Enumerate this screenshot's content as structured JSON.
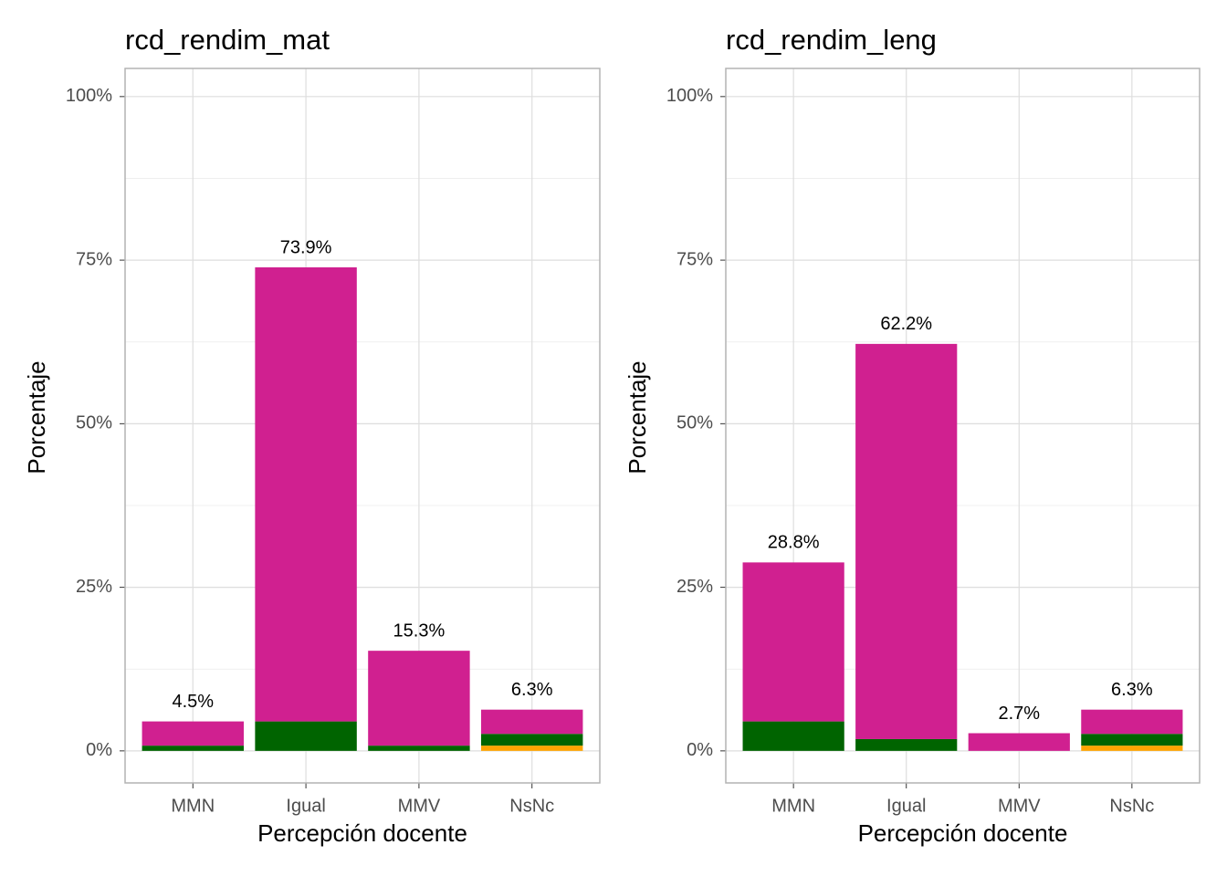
{
  "chart_data": [
    {
      "type": "stacked_bar",
      "title": "rcd_rendim_mat",
      "xlabel": "Percepción docente",
      "ylabel": "Porcentaje",
      "categories": [
        "MMN",
        "Igual",
        "MMV",
        "NsNc"
      ],
      "series": [
        {
          "color": "#ffa500",
          "values": [
            0,
            0,
            0,
            0.8
          ]
        },
        {
          "color": "#006400",
          "values": [
            0.8,
            4.5,
            0.8,
            1.8
          ]
        },
        {
          "color": "#d02090",
          "values": [
            3.7,
            69.4,
            14.5,
            3.7
          ]
        }
      ],
      "totals": [
        4.5,
        73.9,
        15.3,
        6.3
      ],
      "total_labels": [
        "4.5%",
        "73.9%",
        "15.3%",
        "6.3%"
      ],
      "ylim": [
        -4.9,
        104.3
      ],
      "yticks": [
        {
          "value": 0,
          "label": "0%"
        },
        {
          "value": 25,
          "label": "25%"
        },
        {
          "value": 50,
          "label": "50%"
        },
        {
          "value": 75,
          "label": "75%"
        },
        {
          "value": 100,
          "label": "100%"
        }
      ],
      "grid": true
    },
    {
      "type": "stacked_bar",
      "title": "rcd_rendim_leng",
      "xlabel": "Percepción docente",
      "ylabel": "Porcentaje",
      "categories": [
        "MMN",
        "Igual",
        "MMV",
        "NsNc"
      ],
      "series": [
        {
          "color": "#ffa500",
          "values": [
            0,
            0,
            0,
            0.8
          ]
        },
        {
          "color": "#006400",
          "values": [
            4.5,
            1.8,
            0,
            1.8
          ]
        },
        {
          "color": "#d02090",
          "values": [
            24.3,
            60.4,
            2.7,
            3.7
          ]
        }
      ],
      "totals": [
        28.8,
        62.2,
        2.7,
        6.3
      ],
      "total_labels": [
        "28.8%",
        "62.2%",
        "2.7%",
        "6.3%"
      ],
      "ylim": [
        -4.9,
        104.3
      ],
      "yticks": [
        {
          "value": 0,
          "label": "0%"
        },
        {
          "value": 25,
          "label": "25%"
        },
        {
          "value": 50,
          "label": "50%"
        },
        {
          "value": 75,
          "label": "75%"
        },
        {
          "value": 100,
          "label": "100%"
        }
      ],
      "grid": true
    }
  ]
}
